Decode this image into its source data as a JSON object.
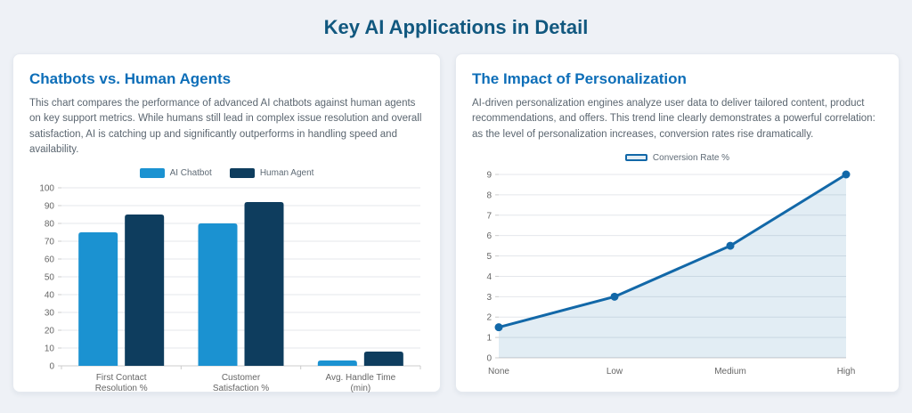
{
  "page": {
    "title": "Key AI Applications in Detail"
  },
  "colors": {
    "page_bg": "#eef1f6",
    "card_bg": "#ffffff",
    "card_border": "#e6eaf0",
    "heading_blue": "#11587f",
    "card_title_blue": "#0d6eb8",
    "body_text": "#5b6670",
    "axis_text": "#666666",
    "grid_line": "#e4e7eb",
    "axis_line": "#cccccc",
    "legend_text": "#5f6b76"
  },
  "cards": [
    {
      "title": "Chatbots vs. Human Agents",
      "description": "This chart compares the performance of advanced AI chatbots against human agents on key support metrics. While humans still lead in complex issue resolution and overall satisfaction, AI is catching up and significantly outperforms in handling speed and availability."
    },
    {
      "title": "The Impact of Personalization",
      "description": "AI-driven personalization engines analyze user data to deliver tailored content, product recommendations, and offers. This trend line clearly demonstrates a powerful correlation: as the level of personalization increases, conversion rates rise dramatically."
    }
  ],
  "chart_data": [
    {
      "type": "bar",
      "title": "Chatbots vs. Human Agents",
      "categories": [
        [
          "First Contact",
          "Resolution %"
        ],
        [
          "Customer",
          "Satisfaction %"
        ],
        [
          "Avg. Handle Time",
          "(min)"
        ]
      ],
      "series": [
        {
          "name": "AI Chatbot",
          "color": "#1b92d1",
          "values": [
            75,
            80,
            3
          ]
        },
        {
          "name": "Human Agent",
          "color": "#0e3d5e",
          "values": [
            85,
            92,
            8
          ]
        }
      ],
      "ylim": [
        0,
        100
      ],
      "ytick_step": 10,
      "grid": true,
      "legend_position": "top"
    },
    {
      "type": "line",
      "title": "The Impact of Personalization",
      "categories": [
        "None",
        "Low",
        "Medium",
        "High"
      ],
      "series": [
        {
          "name": "Conversion Rate %",
          "line_color": "#1268a8",
          "fill_color": "rgba(18,104,168,0.12)",
          "values": [
            1.5,
            3,
            5.5,
            9
          ]
        }
      ],
      "ylim": [
        0,
        9
      ],
      "ytick_step": 1,
      "grid": true,
      "area": true,
      "legend_position": "top"
    }
  ]
}
